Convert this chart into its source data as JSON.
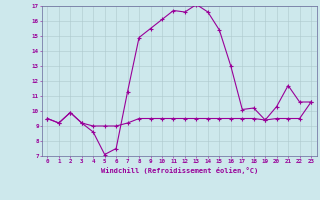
{
  "xlabel": "Windchill (Refroidissement éolien,°C)",
  "bg_color": "#cde8ec",
  "line_color": "#990099",
  "x_hours": [
    0,
    1,
    2,
    3,
    4,
    5,
    6,
    7,
    8,
    9,
    10,
    11,
    12,
    13,
    14,
    15,
    16,
    17,
    18,
    19,
    20,
    21,
    22,
    23
  ],
  "temp_curve": [
    9.5,
    9.2,
    9.9,
    9.2,
    8.6,
    7.1,
    7.5,
    11.3,
    14.9,
    15.5,
    16.1,
    16.7,
    16.6,
    17.1,
    16.6,
    15.4,
    13.0,
    10.1,
    10.2,
    9.4,
    10.3,
    11.7,
    10.6,
    10.6
  ],
  "windchill_curve": [
    9.5,
    9.2,
    9.9,
    9.2,
    9.0,
    9.0,
    9.0,
    9.2,
    9.5,
    9.5,
    9.5,
    9.5,
    9.5,
    9.5,
    9.5,
    9.5,
    9.5,
    9.5,
    9.5,
    9.4,
    9.5,
    9.5,
    9.5,
    10.6
  ],
  "ylim": [
    7,
    17
  ],
  "xlim": [
    -0.5,
    23.5
  ],
  "yticks": [
    7,
    8,
    9,
    10,
    11,
    12,
    13,
    14,
    15,
    16,
    17
  ]
}
